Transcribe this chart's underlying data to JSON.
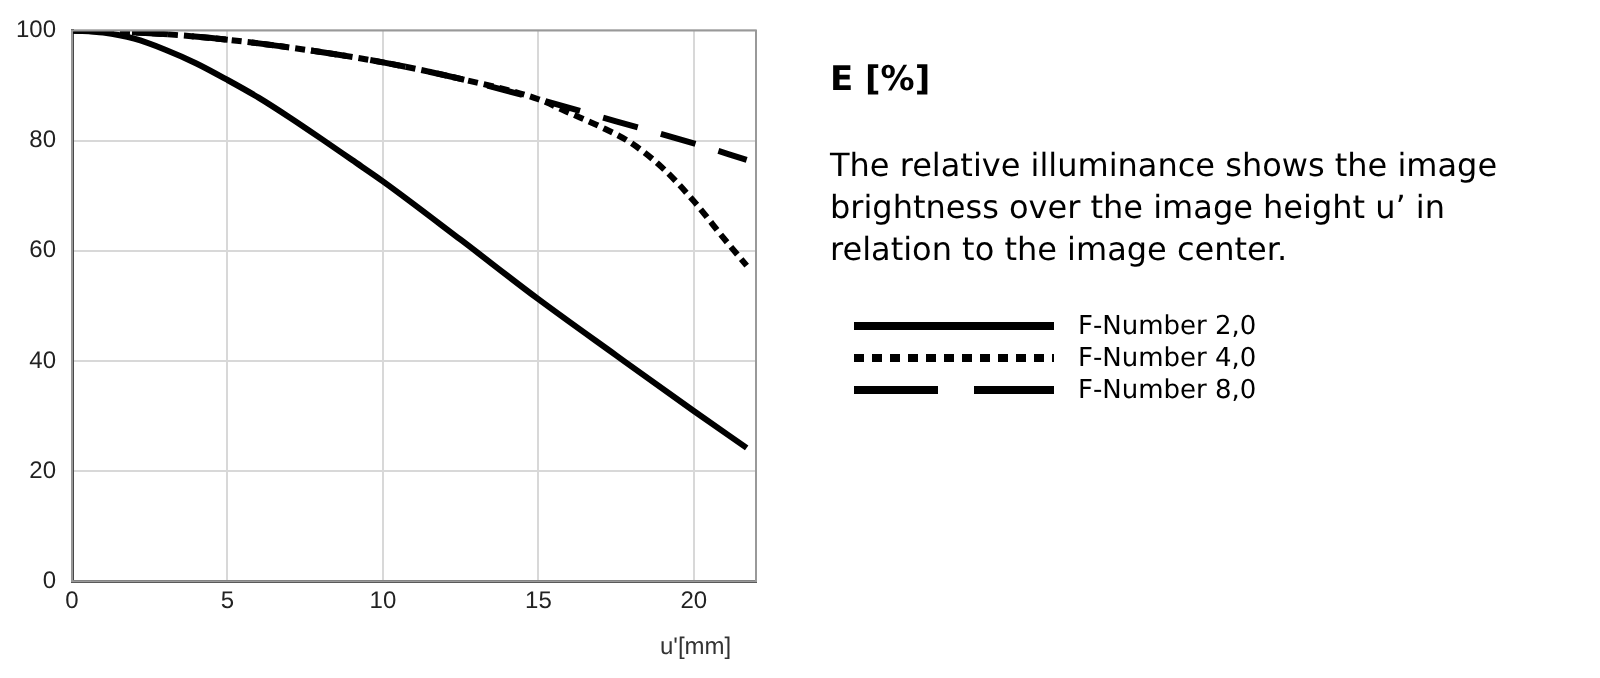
{
  "chart_data": {
    "type": "line",
    "title": "E [%]",
    "xlabel": "u'[mm]",
    "annotations": [
      "The relative illuminance shows the image brightness over the image height u’  in relation to the image center."
    ],
    "xlim": [
      0,
      22
    ],
    "xticks": [
      0,
      5,
      10,
      15,
      20
    ],
    "ylim": [
      0,
      100
    ],
    "yticks": [
      0,
      20,
      40,
      60,
      80,
      100
    ],
    "grid": true,
    "legend": "right",
    "marker": "none",
    "series": [
      {
        "name": "F-Number 2,0",
        "color": "#000000",
        "line_style": "solid",
        "x": [
          0,
          1,
          2,
          3,
          4,
          5,
          6,
          7,
          8,
          9,
          10,
          12.5,
          15,
          17.5,
          20,
          21.7
        ],
        "values": [
          100,
          99.6,
          98.5,
          96.5,
          94,
          91,
          87.8,
          84.2,
          80.4,
          76.5,
          72.6,
          62,
          51.2,
          41,
          30.9,
          24.2
        ]
      },
      {
        "name": "F-Number 4,0",
        "color": "#000000",
        "line_style": "dotted",
        "x": [
          0,
          2.5,
          5,
          7.5,
          10,
          12.5,
          15,
          16,
          17,
          18,
          19,
          20,
          21,
          21.7
        ],
        "values": [
          100,
          99.5,
          98.3,
          96.5,
          94.2,
          91.2,
          87.5,
          85,
          82.5,
          79.5,
          75,
          69,
          62,
          57.3
        ]
      },
      {
        "name": "F-Number 8,0",
        "color": "#000000",
        "line_style": "dashed",
        "x": [
          0,
          2.5,
          5,
          7.5,
          10,
          12.5,
          15,
          17.5,
          20,
          21.7
        ],
        "values": [
          100,
          99.5,
          98.3,
          96.5,
          94.2,
          91.2,
          87.5,
          83.5,
          79.5,
          76.5
        ]
      }
    ]
  }
}
